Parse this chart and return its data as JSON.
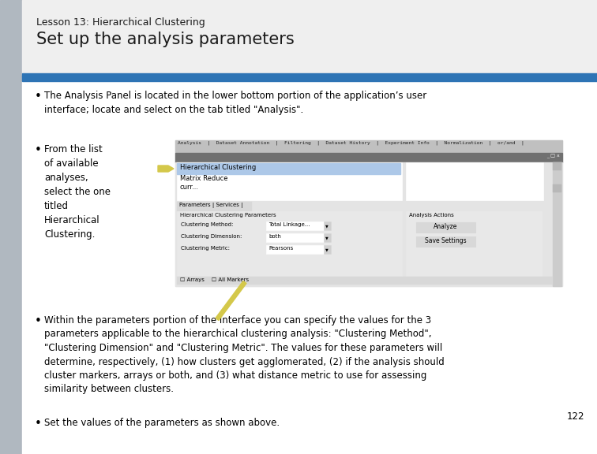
{
  "title_small": "Lesson 13: Hierarchical Clustering",
  "title_large": "Set up the analysis parameters",
  "title_small_size": 9,
  "title_large_size": 15,
  "title_color": "#1a1a1a",
  "blue_bar_color": "#2E74B5",
  "bg_color": "#FFFFFF",
  "bullet1": "The Analysis Panel is located in the lower bottom portion of the application’s user\ninterface; locate and select on the tab titled \"Analysis\".",
  "bullet2_text": "From the list\nof available\nanalyses,\nselect the one\ntitled\nHierarchical\nClustering.",
  "bullet3": "Within the parameters portion of the interface you can specify the values for the 3\nparameters applicable to the hierarchical clustering analysis: \"Clustering Method\",\n\"Clustering Dimension\" and \"Clustering Metric\". The values for these parameters will\ndetermine, respectively, (1) how clusters get agglomerated, (2) if the analysis should\ncluster markers, arrays or both, and (3) what distance metric to use for assessing\nsimilarity between clusters.",
  "bullet4": "Set the values of the parameters as shown above.",
  "page_number": "122",
  "font_size_body": 8.5,
  "arrow_color": "#D4C84A",
  "left_gray_color": "#B0B8C0",
  "title_bg_color": "#EFEFEF"
}
